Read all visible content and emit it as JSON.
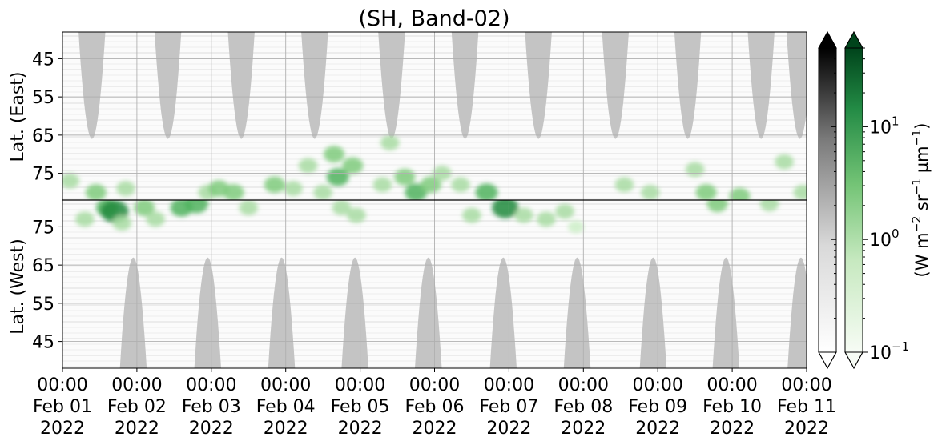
{
  "chart_data": {
    "type": "heatmap",
    "title": "(SH, Band-02)",
    "panels": [
      {
        "name": "east",
        "ylabel": "Lat. (East)",
        "yticks": [
          45,
          55,
          65,
          75
        ],
        "ylim": [
          38,
          82
        ],
        "y_direction": "increasing-downward"
      },
      {
        "name": "west",
        "ylabel": "Lat. (West)",
        "yticks": [
          75,
          65,
          55,
          45
        ],
        "ylim": [
          82,
          38
        ],
        "y_direction": "increasing-upward"
      }
    ],
    "x_ticks": [
      {
        "time": "00:00",
        "date": "Feb 01",
        "year": "2022"
      },
      {
        "time": "00:00",
        "date": "Feb 02",
        "year": "2022"
      },
      {
        "time": "00:00",
        "date": "Feb 03",
        "year": "2022"
      },
      {
        "time": "00:00",
        "date": "Feb 04",
        "year": "2022"
      },
      {
        "time": "00:00",
        "date": "Feb 05",
        "year": "2022"
      },
      {
        "time": "00:00",
        "date": "Feb 06",
        "year": "2022"
      },
      {
        "time": "00:00",
        "date": "Feb 07",
        "year": "2022"
      },
      {
        "time": "00:00",
        "date": "Feb 08",
        "year": "2022"
      },
      {
        "time": "00:00",
        "date": "Feb 09",
        "year": "2022"
      },
      {
        "time": "00:00",
        "date": "Feb 10",
        "year": "2022"
      },
      {
        "time": "00:00",
        "date": "Feb 11",
        "year": "2022"
      }
    ],
    "xlim": [
      "2022-02-01 00:00",
      "2022-02-11 00:00"
    ],
    "grid": true,
    "colorbars": [
      {
        "name": "gray",
        "colors": [
          "#ffffff",
          "#bdbdbd",
          "#6e6e6e",
          "#000000"
        ],
        "extend": "both"
      },
      {
        "name": "green",
        "colors": [
          "#f7fcf5",
          "#c7e9c0",
          "#74c476",
          "#238b45",
          "#00441b"
        ],
        "extend": "both"
      }
    ],
    "colorbar_scale": "log",
    "colorbar_range": [
      0.1,
      50
    ],
    "colorbar_ticks": [
      {
        "base": "10",
        "exp": "1",
        "value": 10
      },
      {
        "base": "10",
        "exp": "0",
        "value": 1
      },
      {
        "base": "10",
        "exp": "−1",
        "value": 0.1
      }
    ],
    "colorbar_label": {
      "prefix": "(W m",
      "sup1": "−2",
      "mid1": " sr",
      "sup2": "−1",
      "mid2": " μm",
      "sup3": "−1",
      "suffix": ")"
    },
    "sunlit_regions": {
      "color": "#c4c4c4",
      "east_peaks": [
        "2022-02-01 09:30",
        "2022-02-02 10:00",
        "2022-02-03 09:40",
        "2022-02-04 09:20",
        "2022-02-05 10:10",
        "2022-02-06 09:50",
        "2022-02-07 09:30",
        "2022-02-08 10:20",
        "2022-02-09 09:40",
        "2022-02-10 09:20",
        "2022-02-10 21:50"
      ],
      "east_peak_lat": 66,
      "west_peaks": [
        "2022-02-01 22:50",
        "2022-02-02 22:50",
        "2022-02-03 22:40",
        "2022-02-04 22:20",
        "2022-02-05 22:00",
        "2022-02-06 22:10",
        "2022-02-07 22:00",
        "2022-02-08 22:30",
        "2022-02-09 22:00",
        "2022-02-10 22:10"
      ],
      "west_peak_lat": 67
    },
    "green_patches": [
      {
        "t": 0.1,
        "lat": 77,
        "panel": "east",
        "v": 2
      },
      {
        "t": 0.45,
        "lat": 80,
        "panel": "east",
        "v": 3
      },
      {
        "t": 0.6,
        "lat": 80,
        "panel": "west",
        "v": 4
      },
      {
        "t": 0.7,
        "lat": 79,
        "panel": "west",
        "v": 10
      },
      {
        "t": 0.8,
        "lat": 76,
        "panel": "west",
        "v": 2
      },
      {
        "t": 0.3,
        "lat": 77,
        "panel": "west",
        "v": 2
      },
      {
        "t": 0.85,
        "lat": 79,
        "panel": "east",
        "v": 2
      },
      {
        "t": 1.1,
        "lat": 80,
        "panel": "west",
        "v": 3
      },
      {
        "t": 1.25,
        "lat": 77,
        "panel": "west",
        "v": 2
      },
      {
        "t": 1.6,
        "lat": 80,
        "panel": "west",
        "v": 4
      },
      {
        "t": 1.8,
        "lat": 81,
        "panel": "west",
        "v": 5
      },
      {
        "t": 1.95,
        "lat": 80,
        "panel": "east",
        "v": 2
      },
      {
        "t": 2.1,
        "lat": 79,
        "panel": "east",
        "v": 3
      },
      {
        "t": 2.3,
        "lat": 80,
        "panel": "east",
        "v": 3
      },
      {
        "t": 2.5,
        "lat": 80,
        "panel": "west",
        "v": 2
      },
      {
        "t": 2.85,
        "lat": 78,
        "panel": "east",
        "v": 3
      },
      {
        "t": 3.1,
        "lat": 79,
        "panel": "east",
        "v": 2
      },
      {
        "t": 3.3,
        "lat": 73,
        "panel": "east",
        "v": 2
      },
      {
        "t": 3.5,
        "lat": 80,
        "panel": "east",
        "v": 2
      },
      {
        "t": 3.65,
        "lat": 70,
        "panel": "east",
        "v": 3
      },
      {
        "t": 3.7,
        "lat": 76,
        "panel": "east",
        "v": 4
      },
      {
        "t": 3.9,
        "lat": 73,
        "panel": "east",
        "v": 3
      },
      {
        "t": 3.75,
        "lat": 80,
        "panel": "west",
        "v": 2
      },
      {
        "t": 3.95,
        "lat": 78,
        "panel": "west",
        "v": 2
      },
      {
        "t": 4.3,
        "lat": 78,
        "panel": "east",
        "v": 2
      },
      {
        "t": 4.4,
        "lat": 67,
        "panel": "east",
        "v": 2
      },
      {
        "t": 4.6,
        "lat": 76,
        "panel": "east",
        "v": 3
      },
      {
        "t": 4.75,
        "lat": 80,
        "panel": "east",
        "v": 4
      },
      {
        "t": 4.95,
        "lat": 78,
        "panel": "east",
        "v": 3
      },
      {
        "t": 5.1,
        "lat": 75,
        "panel": "east",
        "v": 2
      },
      {
        "t": 5.35,
        "lat": 78,
        "panel": "east",
        "v": 2
      },
      {
        "t": 5.5,
        "lat": 78,
        "panel": "west",
        "v": 2
      },
      {
        "t": 5.7,
        "lat": 80,
        "panel": "east",
        "v": 4
      },
      {
        "t": 5.95,
        "lat": 80,
        "panel": "west",
        "v": 8
      },
      {
        "t": 6.2,
        "lat": 78,
        "panel": "west",
        "v": 2
      },
      {
        "t": 6.5,
        "lat": 77,
        "panel": "west",
        "v": 2
      },
      {
        "t": 6.75,
        "lat": 79,
        "panel": "west",
        "v": 2
      },
      {
        "t": 6.9,
        "lat": 75,
        "panel": "west",
        "v": 1
      },
      {
        "t": 7.55,
        "lat": 78,
        "panel": "east",
        "v": 2
      },
      {
        "t": 7.9,
        "lat": 80,
        "panel": "east",
        "v": 2
      },
      {
        "t": 8.5,
        "lat": 74,
        "panel": "east",
        "v": 2
      },
      {
        "t": 8.65,
        "lat": 80,
        "panel": "east",
        "v": 3
      },
      {
        "t": 8.8,
        "lat": 81,
        "panel": "west",
        "v": 3
      },
      {
        "t": 9.1,
        "lat": 81,
        "panel": "east",
        "v": 3
      },
      {
        "t": 9.5,
        "lat": 81,
        "panel": "west",
        "v": 2
      },
      {
        "t": 9.7,
        "lat": 72,
        "panel": "east",
        "v": 2
      },
      {
        "t": 9.95,
        "lat": 80,
        "panel": "east",
        "v": 2
      }
    ]
  }
}
